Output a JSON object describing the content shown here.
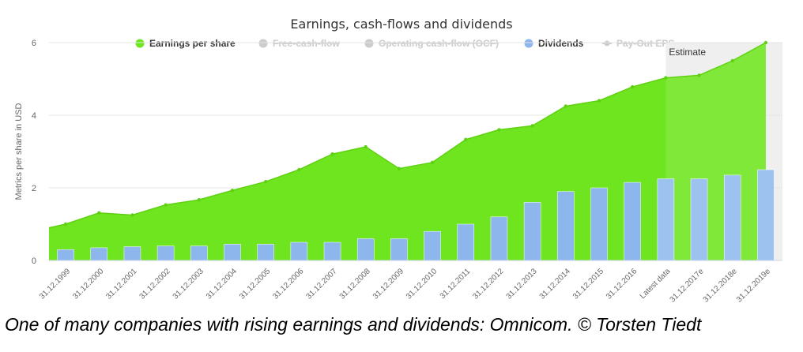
{
  "chart_data": {
    "type": "area",
    "title": "Earnings, cash-flows and dividends",
    "ylabel": "Metrics per share in USD",
    "ylim": [
      0,
      6
    ],
    "yticks": [
      0,
      2,
      4,
      6
    ],
    "grid": true,
    "legend_position": "top",
    "categories": [
      "31.12.1999",
      "31.12.2000",
      "31.12.2001",
      "31.12.2002",
      "31.12.2003",
      "31.12.2004",
      "31.12.2005",
      "31.12.2006",
      "31.12.2007",
      "31.12.2008",
      "31.12.2009",
      "31.12.2010",
      "31.12.2011",
      "31.12.2012",
      "31.12.2013",
      "31.12.2014",
      "31.12.2015",
      "31.12.2016",
      "Latest data",
      "31.12.2017e",
      "31.12.2018e",
      "31.12.2019e"
    ],
    "estimate_label": "Estimate",
    "estimate_start_category": "Latest data",
    "eps_start_value": 0.9,
    "series": [
      {
        "name": "Earnings per share",
        "type": "area",
        "color": "#6ee51e",
        "visible": true,
        "values": [
          1.0,
          1.31,
          1.25,
          1.53,
          1.67,
          1.93,
          2.17,
          2.5,
          2.93,
          3.13,
          2.53,
          2.7,
          3.33,
          3.6,
          3.71,
          4.25,
          4.4,
          4.78,
          5.03,
          5.1,
          5.5,
          6.0
        ]
      },
      {
        "name": "Free-cash-flow",
        "color": "#cccccc",
        "visible": false
      },
      {
        "name": "Operating cash-flow (OCF)",
        "color": "#cccccc",
        "visible": false
      },
      {
        "name": "Dividends",
        "type": "bar",
        "color": "#8cb6ec",
        "visible": true,
        "values": [
          0.3,
          0.35,
          0.38,
          0.4,
          0.4,
          0.45,
          0.45,
          0.5,
          0.5,
          0.6,
          0.6,
          0.8,
          1.0,
          1.2,
          1.6,
          1.9,
          2.0,
          2.15,
          2.25,
          2.25,
          2.35,
          2.5
        ]
      },
      {
        "name": "Pay-Out EPS",
        "color": "#cccccc",
        "visible": false
      }
    ]
  },
  "caption": "One of many companies with rising earnings and dividends: Omnicom. © Torsten Tiedt"
}
